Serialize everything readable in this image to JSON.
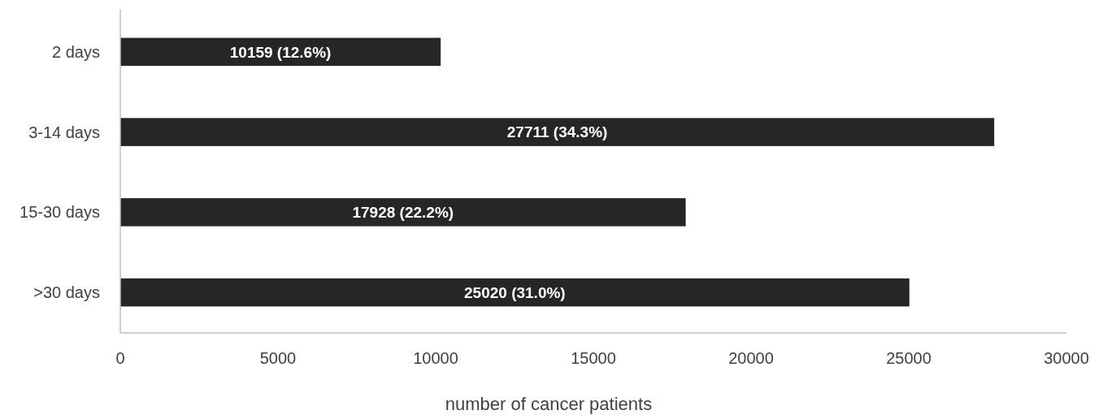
{
  "chart_data": {
    "type": "bar",
    "orientation": "horizontal",
    "xlabel": "number of cancer patients",
    "categories": [
      "2 days",
      "3-14 days",
      "15-30 days",
      ">30 days"
    ],
    "values": [
      10159,
      27711,
      17928,
      25020
    ],
    "value_labels": [
      "10159 (12.6%)",
      "27711 (34.3%)",
      "17928 (22.2%)",
      "25020 (31.0%)"
    ],
    "color": "#262626",
    "xlim": [
      0,
      30000
    ],
    "xticks": [
      0,
      5000,
      10000,
      15000,
      20000,
      25000,
      30000
    ],
    "grid": false
  }
}
